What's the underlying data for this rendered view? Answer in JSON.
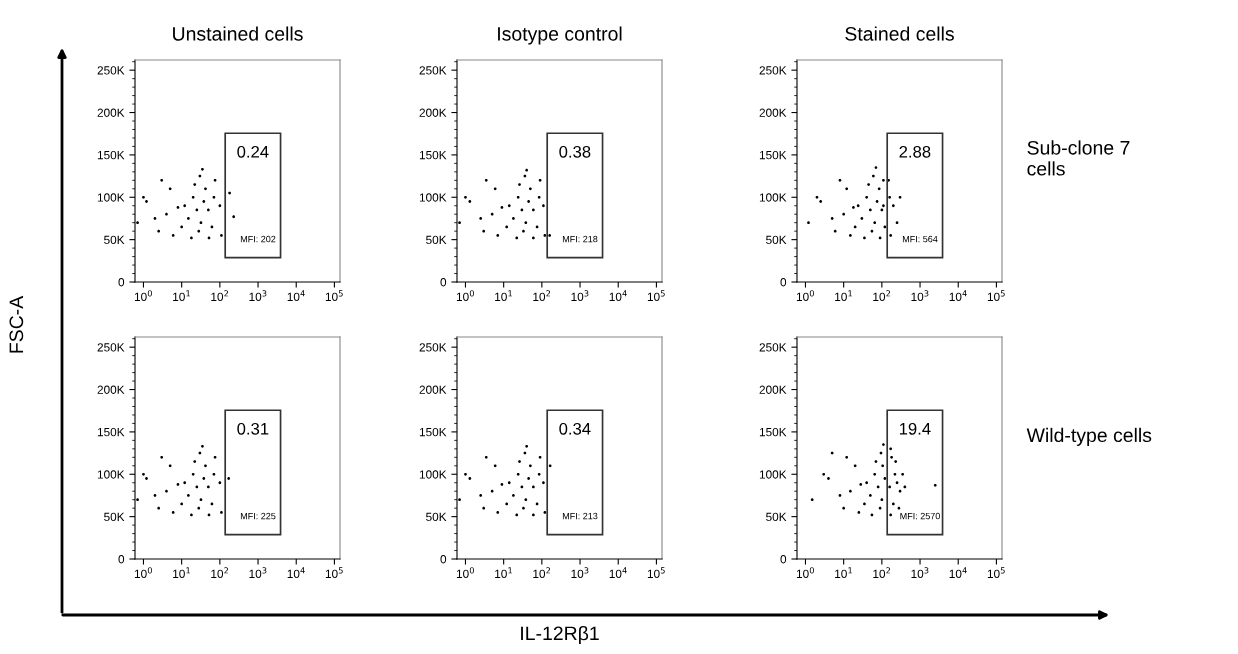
{
  "chart_data": [
    {
      "type": "scatter",
      "title": "Unstained cells",
      "ylabel": "FSC-A",
      "grid": false,
      "log": "x",
      "xlim": [
        0.6,
        140000
      ],
      "ylim": [
        0,
        262000
      ],
      "xticks": [
        {
          "value": 1,
          "label": "10$^{0}$"
        },
        {
          "value": 10,
          "label": "10$^{1}$"
        },
        {
          "value": 100,
          "label": "10$^{2}$"
        },
        {
          "value": 1000,
          "label": "10$^{3}$"
        },
        {
          "value": 10000,
          "label": "10$^{4}$"
        },
        {
          "value": 100000,
          "label": "10$^{5}$"
        }
      ],
      "yticks": [
        0,
        {
          "value": 50000,
          "label": "50K"
        },
        {
          "value": 100000,
          "label": "100K"
        },
        {
          "value": 150000,
          "label": "150K"
        },
        {
          "value": 200000,
          "label": "200K"
        },
        {
          "value": 250000,
          "label": "250K"
        }
      ],
      "annotations": [
        "0.24",
        "MFI: 202"
      ],
      "series": [
        {
          "color": "#000000",
          "x": [
            25,
            15,
            38,
            20,
            32,
            50,
            12,
            28,
            22,
            42,
            62,
            70,
            10,
            30,
            75,
            4,
            2,
            1.2,
            0.7,
            5,
            2.5,
            6,
            1,
            3,
            8,
            100,
            110,
            18,
            52,
            35,
            180,
            230
          ],
          "values": [
            85000,
            75000,
            95000,
            100000,
            70000,
            85000,
            90000,
            60000,
            115000,
            110000,
            65000,
            100000,
            65000,
            125000,
            120000,
            80000,
            75000,
            95000,
            70000,
            110000,
            60000,
            55000,
            100000,
            120000,
            88000,
            90000,
            55000,
            52000,
            52000,
            133000,
            105000,
            77000
          ]
        }
      ]
    },
    {
      "type": "scatter",
      "title": "Isotype control",
      "grid": false,
      "log": "x",
      "xlim": [
        0.6,
        140000
      ],
      "ylim": [
        0,
        262000
      ],
      "xticks": [
        {
          "value": 1,
          "label": "10$^{0}$"
        },
        {
          "value": 10,
          "label": "10$^{1}$"
        },
        {
          "value": 100,
          "label": "10$^{2}$"
        },
        {
          "value": 1000,
          "label": "10$^{3}$"
        },
        {
          "value": 10000,
          "label": "10$^{4}$"
        },
        {
          "value": 100000,
          "label": "10$^{5}$"
        }
      ],
      "yticks": [
        0,
        {
          "value": 50000,
          "label": "50K"
        },
        {
          "value": 100000,
          "label": "100K"
        },
        {
          "value": 150000,
          "label": "150K"
        },
        {
          "value": 200000,
          "label": "200K"
        },
        {
          "value": 250000,
          "label": "250K"
        }
      ],
      "annotations": [
        "0.38",
        "MFI: 218"
      ],
      "series": [
        {
          "color": "#000000",
          "x": [
            30,
            18,
            45,
            24,
            38,
            60,
            14,
            33,
            26,
            50,
            75,
            85,
            12,
            36,
            90,
            5,
            2.5,
            1.3,
            0.7,
            6,
            3,
            7,
            1,
            3.5,
            9,
            110,
            120,
            22,
            60,
            40,
            160
          ],
          "values": [
            85000,
            75000,
            95000,
            100000,
            70000,
            85000,
            90000,
            60000,
            115000,
            110000,
            65000,
            100000,
            65000,
            125000,
            120000,
            80000,
            75000,
            95000,
            70000,
            110000,
            60000,
            55000,
            100000,
            120000,
            88000,
            90000,
            55000,
            52000,
            52000,
            132000,
            55000
          ]
        }
      ]
    },
    {
      "type": "scatter",
      "title": "Stained cells",
      "grid": false,
      "log": "x",
      "xlim": [
        0.6,
        140000
      ],
      "ylim": [
        0,
        262000
      ],
      "xticks": [
        {
          "value": 1,
          "label": "10$^{0}$"
        },
        {
          "value": 10,
          "label": "10$^{1}$"
        },
        {
          "value": 100,
          "label": "10$^{2}$"
        },
        {
          "value": 1000,
          "label": "10$^{3}$"
        },
        {
          "value": 10000,
          "label": "10$^{4}$"
        },
        {
          "value": 100000,
          "label": "10$^{5}$"
        }
      ],
      "yticks": [
        0,
        {
          "value": 50000,
          "label": "50K"
        },
        {
          "value": 100000,
          "label": "100K"
        },
        {
          "value": 150000,
          "label": "150K"
        },
        {
          "value": 200000,
          "label": "200K"
        },
        {
          "value": 250000,
          "label": "250K"
        }
      ],
      "annotations": [
        "2.88",
        "MFI: 564",
        "Sub-clone 7\ncells"
      ],
      "series": [
        {
          "color": "#000000",
          "x": [
            50,
            30,
            75,
            40,
            65,
            100,
            24,
            55,
            45,
            85,
            120,
            160,
            20,
            60,
            110,
            10,
            5,
            2.5,
            1.2,
            12,
            6,
            15,
            2,
            8,
            18,
            110,
            170,
            35,
            90,
            70,
            150,
            200,
            250,
            300
          ],
          "values": [
            85000,
            75000,
            95000,
            100000,
            70000,
            85000,
            90000,
            60000,
            115000,
            110000,
            65000,
            100000,
            65000,
            125000,
            120000,
            80000,
            75000,
            95000,
            70000,
            110000,
            60000,
            55000,
            100000,
            120000,
            88000,
            90000,
            55000,
            52000,
            52000,
            135000,
            120000,
            90000,
            70000,
            100000
          ]
        }
      ]
    },
    {
      "type": "scatter",
      "grid": false,
      "log": "x",
      "xlim": [
        0.6,
        140000
      ],
      "ylim": [
        0,
        262000
      ],
      "xticks": [
        {
          "value": 1,
          "label": "10$^{0}$"
        },
        {
          "value": 10,
          "label": "10$^{1}$"
        },
        {
          "value": 100,
          "label": "10$^{2}$"
        },
        {
          "value": 1000,
          "label": "10$^{3}$"
        },
        {
          "value": 10000,
          "label": "10$^{4}$"
        },
        {
          "value": 100000,
          "label": "10$^{5}$"
        }
      ],
      "yticks": [
        0,
        {
          "value": 50000,
          "label": "50K"
        },
        {
          "value": 100000,
          "label": "100K"
        },
        {
          "value": 150000,
          "label": "150K"
        },
        {
          "value": 200000,
          "label": "200K"
        },
        {
          "value": 250000,
          "label": "250K"
        }
      ],
      "annotations": [
        "0.31",
        "MFI: 225"
      ],
      "series": [
        {
          "color": "#000000",
          "x": [
            25,
            15,
            38,
            20,
            32,
            50,
            12,
            28,
            22,
            42,
            62,
            70,
            10,
            30,
            75,
            4,
            2,
            1.2,
            0.7,
            5,
            2.5,
            6,
            1,
            3,
            8,
            100,
            110,
            18,
            52,
            35,
            170
          ],
          "values": [
            85000,
            75000,
            95000,
            100000,
            70000,
            85000,
            90000,
            60000,
            115000,
            110000,
            65000,
            100000,
            65000,
            125000,
            120000,
            80000,
            75000,
            95000,
            70000,
            110000,
            60000,
            55000,
            100000,
            120000,
            88000,
            90000,
            55000,
            52000,
            52000,
            133000,
            95000
          ]
        }
      ]
    },
    {
      "type": "scatter",
      "xlabel": "IL-12Rβ1",
      "grid": false,
      "log": "x",
      "xlim": [
        0.6,
        140000
      ],
      "ylim": [
        0,
        262000
      ],
      "xticks": [
        {
          "value": 1,
          "label": "10$^{0}$"
        },
        {
          "value": 10,
          "label": "10$^{1}$"
        },
        {
          "value": 100,
          "label": "10$^{2}$"
        },
        {
          "value": 1000,
          "label": "10$^{3}$"
        },
        {
          "value": 10000,
          "label": "10$^{4}$"
        },
        {
          "value": 100000,
          "label": "10$^{5}$"
        }
      ],
      "yticks": [
        0,
        {
          "value": 50000,
          "label": "50K"
        },
        {
          "value": 100000,
          "label": "100K"
        },
        {
          "value": 150000,
          "label": "150K"
        },
        {
          "value": 200000,
          "label": "200K"
        },
        {
          "value": 250000,
          "label": "250K"
        }
      ],
      "annotations": [
        "0.34",
        "MFI: 213"
      ],
      "series": [
        {
          "color": "#000000",
          "x": [
            30,
            18,
            45,
            24,
            38,
            60,
            14,
            33,
            26,
            50,
            75,
            85,
            12,
            36,
            90,
            5,
            2.5,
            1.3,
            0.7,
            6,
            3,
            7,
            1,
            3.5,
            9,
            110,
            120,
            22,
            60,
            40,
            165
          ],
          "values": [
            85000,
            75000,
            95000,
            100000,
            70000,
            85000,
            90000,
            60000,
            115000,
            110000,
            65000,
            100000,
            65000,
            125000,
            120000,
            80000,
            75000,
            95000,
            70000,
            110000,
            60000,
            55000,
            100000,
            120000,
            88000,
            90000,
            55000,
            52000,
            52000,
            133000,
            110000
          ]
        }
      ]
    },
    {
      "type": "scatter",
      "grid": false,
      "log": "x",
      "xlim": [
        0.6,
        140000
      ],
      "ylim": [
        0,
        262000
      ],
      "xticks": [
        {
          "value": 1,
          "label": "10$^{0}$"
        },
        {
          "value": 10,
          "label": "10$^{1}$"
        },
        {
          "value": 100,
          "label": "10$^{2}$"
        },
        {
          "value": 1000,
          "label": "10$^{3}$"
        },
        {
          "value": 10000,
          "label": "10$^{4}$"
        },
        {
          "value": 100000,
          "label": "10$^{5}$"
        }
      ],
      "yticks": [
        0,
        {
          "value": 50000,
          "label": "50K"
        },
        {
          "value": 100000,
          "label": "100K"
        },
        {
          "value": 150000,
          "label": "150K"
        },
        {
          "value": 200000,
          "label": "200K"
        },
        {
          "value": 250000,
          "label": "250K"
        }
      ],
      "annotations": [
        "19.4",
        "MFI: 2570",
        "Wild-type cells"
      ],
      "series": [
        {
          "color": "#000000",
          "x": [
            80,
            50,
            120,
            65,
            100,
            160,
            40,
            90,
            70,
            105,
            200,
            220,
            35,
            95,
            180,
            15,
            8,
            4,
            1.5,
            20,
            10,
            25,
            3,
            12,
            28,
            250,
            300,
            55,
            170,
            110,
            170,
            230,
            280,
            350,
            400,
            2500,
            5
          ],
          "values": [
            85000,
            75000,
            95000,
            100000,
            70000,
            85000,
            90000,
            60000,
            115000,
            110000,
            65000,
            100000,
            65000,
            125000,
            120000,
            80000,
            75000,
            95000,
            70000,
            110000,
            60000,
            55000,
            100000,
            120000,
            88000,
            90000,
            80000,
            52000,
            52000,
            135000,
            130000,
            115000,
            60000,
            100000,
            85000,
            87000,
            125000
          ]
        }
      ]
    }
  ]
}
